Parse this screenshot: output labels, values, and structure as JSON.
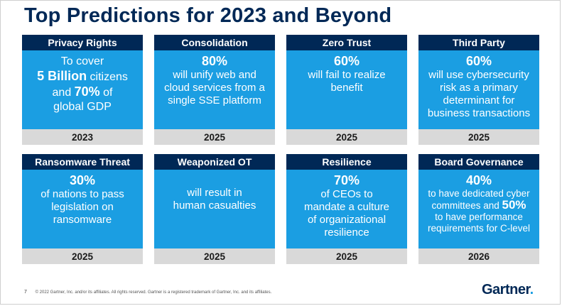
{
  "title": "Top Predictions for 2023 and Beyond",
  "cards": [
    {
      "head": "Privacy Rights",
      "year": "2023",
      "l1": "To cover",
      "l2a": "5 Billion",
      "l2b": " citizens",
      "l3a": "and ",
      "l3b": "70%",
      "l3c": " of",
      "l4": "global GDP"
    },
    {
      "head": "Consolidation",
      "year": "2025",
      "big": "80%",
      "l1": "will unify web and",
      "l2": "cloud services from a",
      "l3": "single SSE platform"
    },
    {
      "head": "Zero Trust",
      "year": "2025",
      "big": "60%",
      "l1": "will fail to realize",
      "l2": "benefit"
    },
    {
      "head": "Third Party",
      "year": "2025",
      "big": "60%",
      "l1": "will use cybersecurity",
      "l2": "risk as a primary",
      "l3": "determinant for",
      "l4": "business transactions"
    },
    {
      "head": "Ransomware Threat",
      "year": "2025",
      "big": "30%",
      "l1": "of nations to pass",
      "l2": "legislation on",
      "l3": "ransomware"
    },
    {
      "head": "Weaponized OT",
      "year": "2025",
      "l1": "will result in",
      "l2": "human casualties"
    },
    {
      "head": "Resilience",
      "year": "2025",
      "big": "70%",
      "l1": "of CEOs to",
      "l2": "mandate a culture",
      "l3": "of organizational",
      "l4": "resilience"
    },
    {
      "head": "Board Governance",
      "year": "2026",
      "big": "40%",
      "l1": "to have dedicated cyber",
      "l2a": "committees and ",
      "l2b": "50%",
      "l3": "to have performance",
      "l4": "requirements for C-level"
    }
  ],
  "footer": {
    "page": "7",
    "copyright": "© 2022 Gartner, Inc. and/or its affiliates. All rights reserved. Gartner is a registered trademark of Gartner, Inc. and its affiliates."
  },
  "logo": {
    "text": "Gartner",
    "dot": "."
  }
}
